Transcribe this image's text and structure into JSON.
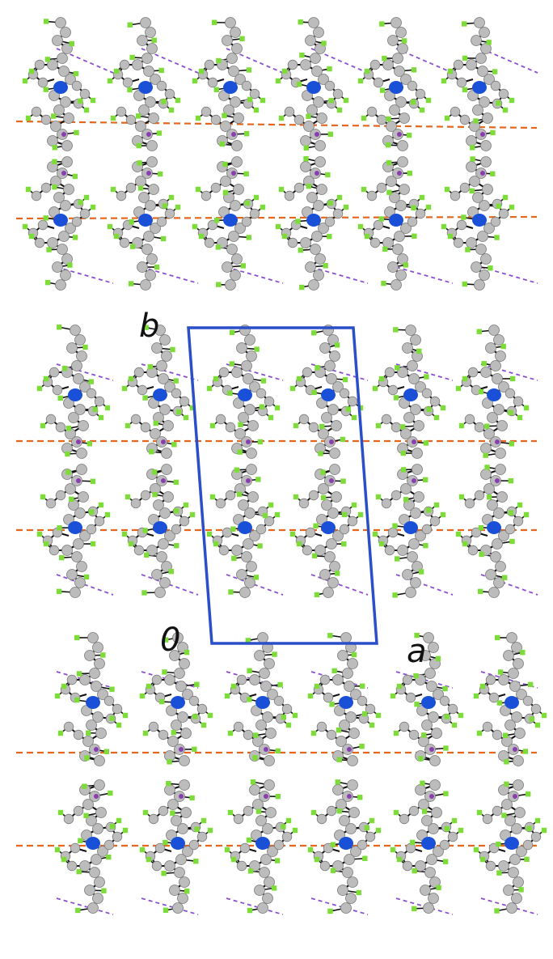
{
  "figure": {
    "axis_labels": {
      "b": "b",
      "origin": "0",
      "a": "a"
    },
    "colors": {
      "background": "#ffffff",
      "carbon": "#bcbcbc",
      "hydrogen": "#7ddc3a",
      "nitrogen": "#1a4fd8",
      "metal": "#8a3fb0",
      "bond": "#111111",
      "contact_orange": "#e5671f",
      "contact_purple": "#8a4fd0",
      "unit_cell": "#2a4fc8"
    },
    "elements": [
      "carbon",
      "hydrogen",
      "nitrogen",
      "bond",
      "unit-cell",
      "orange-contacts",
      "purple-contacts"
    ]
  }
}
